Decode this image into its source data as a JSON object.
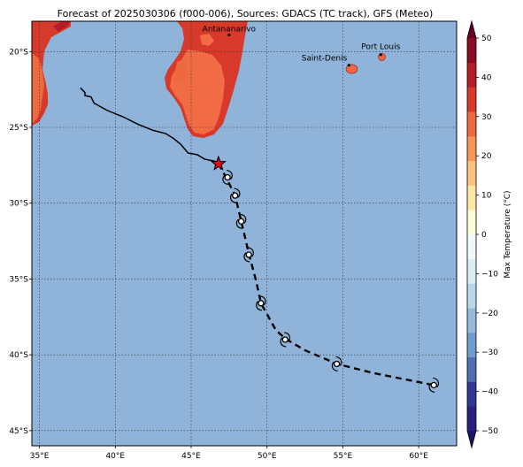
{
  "title": "Forecast of 2025030306 (f000-006), Sources: GDACS (TC track), GFS (Meteo)",
  "map": {
    "lon_range": [
      34.5,
      62.5
    ],
    "lat_range": [
      -46,
      -18
    ],
    "lon_ticks": [
      {
        "value": 35,
        "label": "35°E"
      },
      {
        "value": 40,
        "label": "40°E"
      },
      {
        "value": 45,
        "label": "45°E"
      },
      {
        "value": 50,
        "label": "50°E"
      },
      {
        "value": 55,
        "label": "55°E"
      },
      {
        "value": 60,
        "label": "60°E"
      }
    ],
    "lat_ticks": [
      {
        "value": -20,
        "label": "20°S"
      },
      {
        "value": -25,
        "label": "25°S"
      },
      {
        "value": -30,
        "label": "30°S"
      },
      {
        "value": -35,
        "label": "35°S"
      },
      {
        "value": -40,
        "label": "40°S"
      },
      {
        "value": -45,
        "label": "45°S"
      }
    ],
    "gridlines": true,
    "ocean_color": "#8fb3d9",
    "cities": [
      {
        "name": "Antananarivo",
        "lon": 47.5,
        "lat": -18.9
      },
      {
        "name": "Port Louis",
        "lon": 57.5,
        "lat": -20.2
      },
      {
        "name": "Saint-Denis",
        "lon": 55.4,
        "lat": -20.9
      }
    ],
    "past_track": [
      [
        37.7,
        -22.4
      ],
      [
        38.0,
        -22.7
      ],
      [
        38.0,
        -22.9
      ],
      [
        38.4,
        -23.0
      ],
      [
        38.6,
        -23.4
      ],
      [
        39.5,
        -23.9
      ],
      [
        40.5,
        -24.3
      ],
      [
        41.5,
        -24.8
      ],
      [
        42.5,
        -25.2
      ],
      [
        43.3,
        -25.4
      ],
      [
        43.8,
        -25.7
      ],
      [
        44.3,
        -26.1
      ],
      [
        44.8,
        -26.7
      ],
      [
        45.4,
        -26.8
      ],
      [
        45.9,
        -27.1
      ],
      [
        46.4,
        -27.2
      ],
      [
        46.8,
        -27.3
      ]
    ],
    "current_position": {
      "lon": 46.8,
      "lat": -27.4
    },
    "forecast_track": [
      [
        46.8,
        -27.4
      ],
      [
        47.3,
        -28.3
      ],
      [
        47.9,
        -29.5
      ],
      [
        48.3,
        -31.2
      ],
      [
        48.8,
        -33.3
      ],
      [
        49.3,
        -35.2
      ],
      [
        49.6,
        -36.6
      ],
      [
        50.6,
        -38.4
      ],
      [
        51.3,
        -39.0
      ],
      [
        52.5,
        -39.7
      ],
      [
        54.6,
        -40.6
      ],
      [
        57.0,
        -41.2
      ],
      [
        59.5,
        -41.7
      ],
      [
        61.0,
        -42.0
      ]
    ],
    "forecast_points": [
      [
        47.4,
        -28.3
      ],
      [
        47.9,
        -29.5
      ],
      [
        48.3,
        -31.2
      ],
      [
        48.8,
        -33.4
      ],
      [
        49.6,
        -36.6
      ],
      [
        51.2,
        -39.0
      ],
      [
        54.6,
        -40.6
      ],
      [
        61.0,
        -42.0
      ]
    ]
  },
  "colorbar": {
    "label": "Max Temperature (°C)",
    "min": -50,
    "max": 50,
    "ticks": [
      "50",
      "40",
      "30",
      "20",
      "10",
      "0",
      "−10",
      "−20",
      "−30",
      "−40",
      "−50"
    ],
    "colors": [
      "#2a1f7d",
      "#313695",
      "#4e6fb0",
      "#6f9cc8",
      "#94bbdb",
      "#b8d6e9",
      "#d9ebf4",
      "#f0f8fa",
      "#fffcd6",
      "#fee6a6",
      "#fdc07e",
      "#f99559",
      "#ed6940",
      "#d73a2b",
      "#b41c27",
      "#8a0b26"
    ],
    "under_color": "#1c1669",
    "over_color": "#67001f"
  }
}
